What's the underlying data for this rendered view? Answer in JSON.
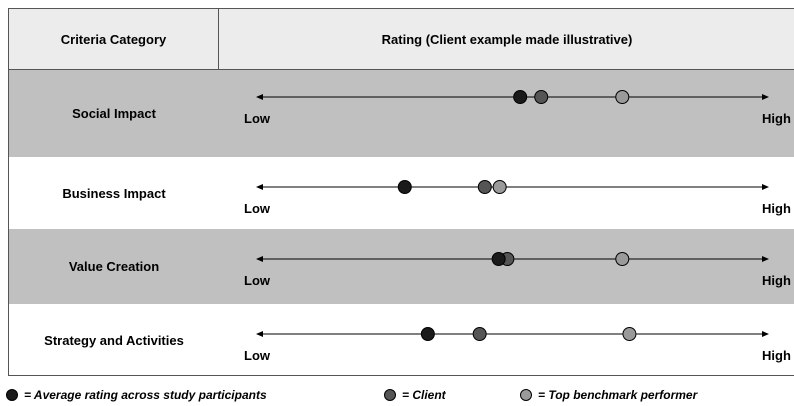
{
  "header": {
    "category_label": "Criteria Category",
    "rating_label": "Rating (Client example made illustrative)"
  },
  "scale": {
    "low_label": "Low",
    "high_label": "High"
  },
  "colors": {
    "average": "#1a1a1a",
    "client": "#555555",
    "top": "#9a9a9a"
  },
  "rows": [
    {
      "label": "Social Impact",
      "shaded": true,
      "average": 0.515,
      "client": 0.556,
      "top": 0.714
    },
    {
      "label": "Business Impact",
      "shaded": false,
      "average": 0.29,
      "client": 0.446,
      "top": 0.475
    },
    {
      "label": "Value Creation",
      "shaded": true,
      "average": 0.473,
      "client": 0.49,
      "top": 0.714
    },
    {
      "label": "Strategy and Activities",
      "shaded": false,
      "average": 0.335,
      "client": 0.436,
      "top": 0.728
    }
  ],
  "legend": {
    "average_label": "= Average rating across study participants",
    "client_label": "= Client",
    "top_label": "= Top benchmark performer"
  }
}
